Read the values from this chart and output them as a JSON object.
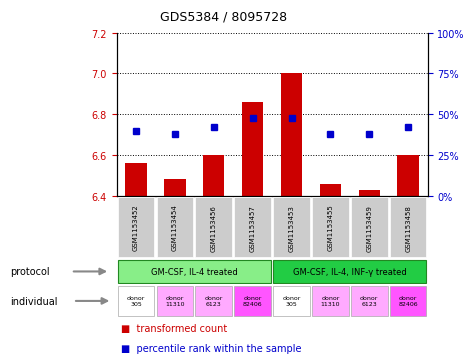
{
  "title": "GDS5384 / 8095728",
  "samples": [
    "GSM1153452",
    "GSM1153454",
    "GSM1153456",
    "GSM1153457",
    "GSM1153453",
    "GSM1153455",
    "GSM1153459",
    "GSM1153458"
  ],
  "bar_values": [
    6.56,
    6.48,
    6.6,
    6.86,
    7.0,
    6.46,
    6.43,
    6.6
  ],
  "percentile_values": [
    40,
    38,
    42,
    48,
    48,
    38,
    38,
    42
  ],
  "ylim_left": [
    6.4,
    7.2
  ],
  "ylim_right": [
    0,
    100
  ],
  "yticks_left": [
    6.4,
    6.6,
    6.8,
    7.0,
    7.2
  ],
  "yticks_right": [
    0,
    25,
    50,
    75,
    100
  ],
  "bar_color": "#cc0000",
  "square_color": "#0000cc",
  "bar_bottom": 6.4,
  "protocol_groups": [
    {
      "label": "GM-CSF, IL-4 treated",
      "start": 0,
      "end": 4,
      "color": "#88ee88"
    },
    {
      "label": "GM-CSF, IL-4, INF-γ treated",
      "start": 4,
      "end": 8,
      "color": "#22cc44"
    }
  ],
  "indiv_colors": [
    "#ffffff",
    "#ffaaff",
    "#ffaaff",
    "#ff55ff",
    "#ffffff",
    "#ffaaff",
    "#ffaaff",
    "#ff55ff"
  ],
  "indiv_labels": [
    "donor\n305",
    "donor\n11310",
    "donor\n6123",
    "donor\n82406",
    "donor\n305",
    "donor\n11310",
    "donor\n6123",
    "donor\n82406"
  ],
  "sample_box_color": "#cccccc",
  "legend_red_label": "transformed count",
  "legend_blue_label": "percentile rank within the sample"
}
